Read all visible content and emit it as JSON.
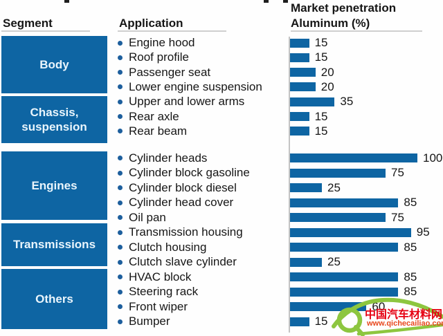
{
  "header": {
    "segment": "Segment",
    "application": "Application",
    "penetration_line1": "Market penetration",
    "penetration_line2": "Aluminum (%)"
  },
  "segments": [
    {
      "label": "Body",
      "lines": [
        "Body"
      ],
      "row_start": 0,
      "row_end": 3
    },
    {
      "label": "Chassis, suspension",
      "lines": [
        "Chassis,",
        "suspension"
      ],
      "row_start": 4,
      "row_end": 6
    },
    {
      "label": "Engines",
      "lines": [
        "Engines"
      ],
      "row_start": 7,
      "row_end": 11
    },
    {
      "label": "Transmissions",
      "lines": [
        "Transmissions"
      ],
      "row_start": 12,
      "row_end": 14
    },
    {
      "label": "Others",
      "lines": [
        "Others"
      ],
      "row_start": 15,
      "row_end": 18
    }
  ],
  "rows": [
    {
      "application": "Engine hood",
      "value": 15
    },
    {
      "application": "Roof profile",
      "value": 15
    },
    {
      "application": "Passenger seat",
      "value": 20
    },
    {
      "application": "Lower engine suspension",
      "value": 20
    },
    {
      "application": "Upper and lower arms",
      "value": 35
    },
    {
      "application": "Rear axle",
      "value": 15
    },
    {
      "application": "Rear beam",
      "value": 15
    },
    {
      "application": "Cylinder heads",
      "value": 100
    },
    {
      "application": "Cylinder block gasoline",
      "value": 75
    },
    {
      "application": "Cylinder block diesel",
      "value": 25
    },
    {
      "application": "Cylinder head cover",
      "value": 85
    },
    {
      "application": "Oil pan",
      "value": 75
    },
    {
      "application": "Transmission housing",
      "value": 95
    },
    {
      "application": "Clutch housing",
      "value": 85
    },
    {
      "application": "Clutch slave cylinder",
      "value": 25
    },
    {
      "application": "HVAC block",
      "value": 85
    },
    {
      "application": "Steering rack",
      "value": 85
    },
    {
      "application": "Front wiper",
      "value": 60
    },
    {
      "application": "Bumper",
      "value": 15
    }
  ],
  "chart_data": {
    "type": "bar",
    "orientation": "horizontal",
    "title": "Market penetration Aluminum (%)",
    "xlabel": "",
    "ylabel": "",
    "xlim": [
      0,
      100
    ],
    "grid": false,
    "categories": [
      "Engine hood",
      "Roof profile",
      "Passenger seat",
      "Lower engine suspension",
      "Upper and lower arms",
      "Rear axle",
      "Rear beam",
      "Cylinder heads",
      "Cylinder block gasoline",
      "Cylinder block diesel",
      "Cylinder head cover",
      "Oil pan",
      "Transmission housing",
      "Clutch housing",
      "Clutch slave cylinder",
      "HVAC block",
      "Steering rack",
      "Front wiper",
      "Bumper"
    ],
    "values": [
      15,
      15,
      20,
      20,
      35,
      15,
      15,
      100,
      75,
      25,
      85,
      75,
      95,
      85,
      25,
      85,
      85,
      60,
      15
    ],
    "category_segments": [
      "Body",
      "Body",
      "Body",
      "Body",
      "Chassis, suspension",
      "Chassis, suspension",
      "Chassis, suspension",
      "Engines",
      "Engines",
      "Engines",
      "Engines",
      "Engines",
      "Transmissions",
      "Transmissions",
      "Transmissions",
      "Others",
      "Others",
      "Others",
      "Others"
    ]
  },
  "watermark": {
    "site_name": "中国汽车材料网",
    "site_url": "www.qichecailiao.com"
  },
  "colors": {
    "bar_blue": "#0e65a3",
    "segment_box_blue": "#0e65a3",
    "segment_text": "#e9f5fc",
    "watermark_green": "#8dc63f",
    "watermark_red": "#e60012",
    "watermark_url_red": "#e8481e",
    "axis_gray": "#c4c4c4"
  }
}
